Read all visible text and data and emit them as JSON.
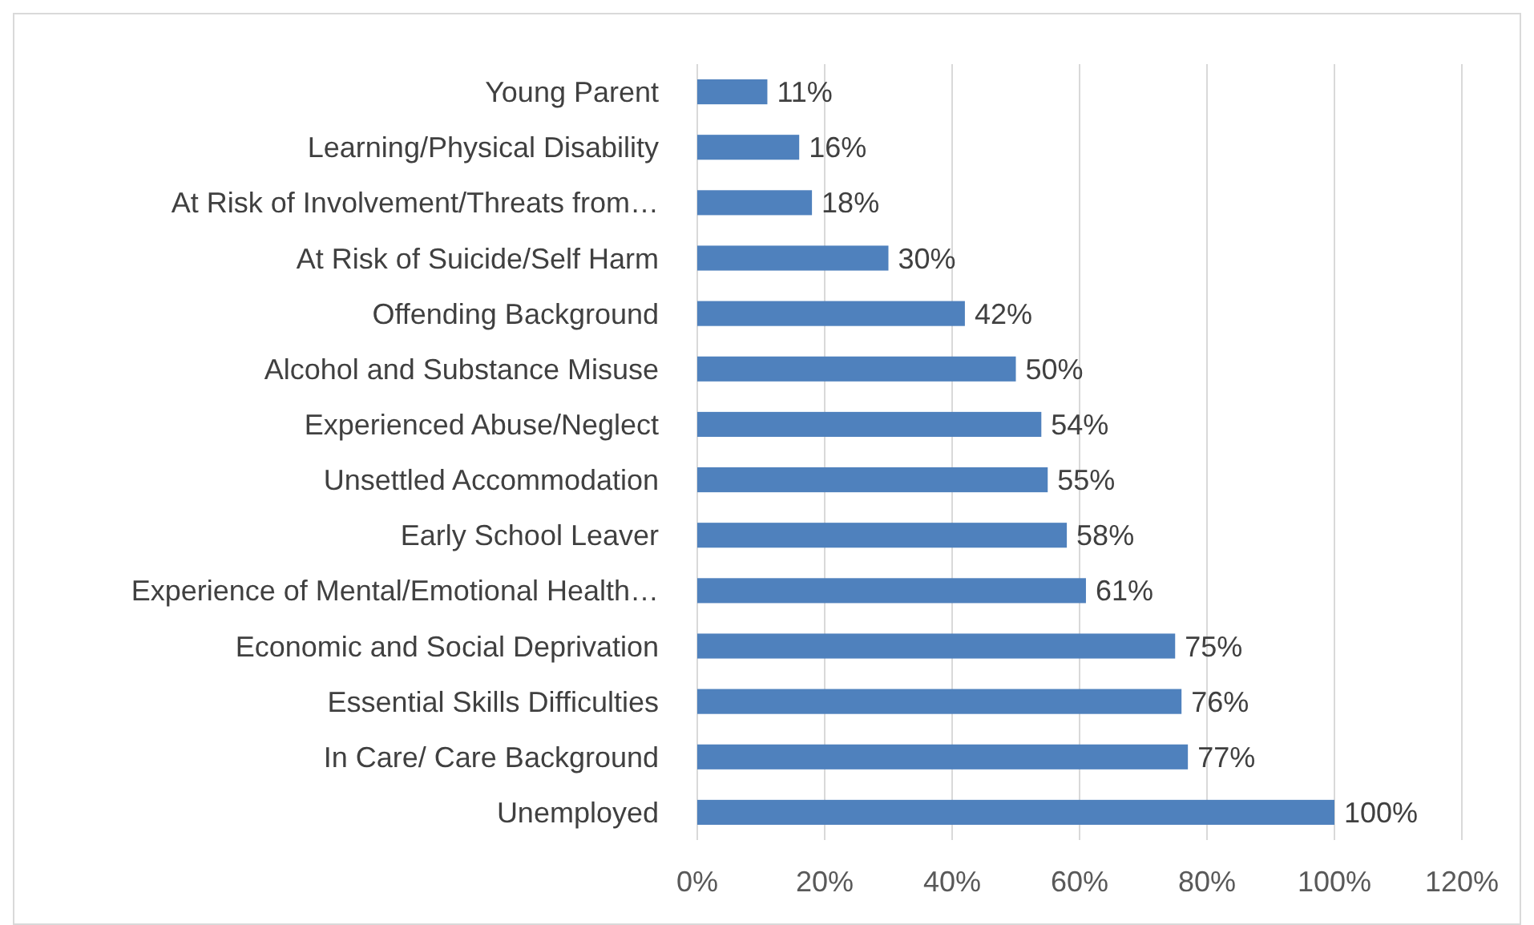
{
  "chart_data": {
    "type": "bar",
    "orientation": "horizontal",
    "categories": [
      "Young Parent",
      "Learning/Physical Disability",
      "At Risk of Involvement/Threats from…",
      "At Risk of Suicide/Self Harm",
      "Offending Background",
      "Alcohol and Substance Misuse",
      "Experienced Abuse/Neglect",
      "Unsettled Accommodation",
      "Early School Leaver",
      "Experience of Mental/Emotional Health…",
      "Economic and Social Deprivation",
      "Essential Skills Difficulties",
      "In Care/ Care Background",
      "Unemployed"
    ],
    "values": [
      11,
      16,
      18,
      30,
      42,
      50,
      54,
      55,
      58,
      61,
      75,
      76,
      77,
      100
    ],
    "value_labels": [
      "11%",
      "16%",
      "18%",
      "30%",
      "42%",
      "50%",
      "54%",
      "55%",
      "58%",
      "61%",
      "75%",
      "76%",
      "77%",
      "100%"
    ],
    "color": "#4f81bd",
    "xlim": [
      0,
      120
    ],
    "xticks": [
      {
        "value": 0,
        "label": "0%"
      },
      {
        "value": 20,
        "label": "20%"
      },
      {
        "value": 40,
        "label": "40%"
      },
      {
        "value": 60,
        "label": "60%"
      },
      {
        "value": 80,
        "label": "80%"
      },
      {
        "value": 100,
        "label": "100%"
      },
      {
        "value": 120,
        "label": "120%"
      }
    ],
    "grid": "x"
  }
}
